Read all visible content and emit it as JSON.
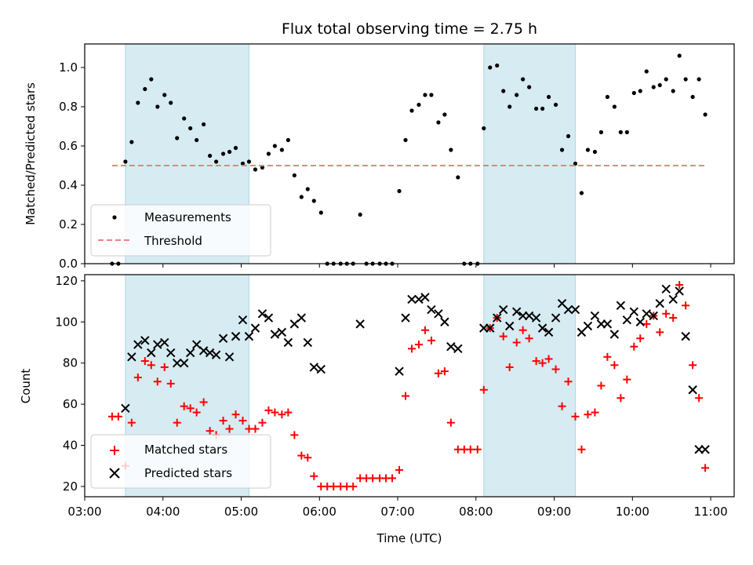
{
  "chart_data": [
    {
      "type": "scatter",
      "title": "Flux total observing time = 2.75 h",
      "ylabel": "Matched/Predicted stars",
      "xlabel": "",
      "xlim": [
        3.0,
        11.3
      ],
      "ylim": [
        0.0,
        1.12
      ],
      "x_ticks": [
        3,
        4,
        5,
        6,
        7,
        8,
        9,
        10,
        11
      ],
      "y_ticks": [
        0.0,
        0.2,
        0.4,
        0.6,
        0.8,
        1.0
      ],
      "y_tick_labels": [
        "0.0",
        "0.2",
        "0.4",
        "0.6",
        "0.8",
        "1.0"
      ],
      "shaded_spans": [
        [
          3.52,
          5.1
        ],
        [
          8.1,
          9.27
        ]
      ],
      "shade_color": "#add8e6",
      "legend_position": "lower-left",
      "series": [
        {
          "name": "Measurements",
          "color": "#000000",
          "marker": "dot",
          "x": [
            3.35,
            3.43,
            3.52,
            3.6,
            3.68,
            3.77,
            3.85,
            3.93,
            4.02,
            4.1,
            4.18,
            4.27,
            4.35,
            4.43,
            4.52,
            4.6,
            4.68,
            4.77,
            4.85,
            4.93,
            5.02,
            5.1,
            5.18,
            5.27,
            5.35,
            5.43,
            5.52,
            5.6,
            5.68,
            5.77,
            5.85,
            5.93,
            6.02,
            6.1,
            6.18,
            6.27,
            6.35,
            6.43,
            6.52,
            6.6,
            6.68,
            6.77,
            6.85,
            6.93,
            7.02,
            7.1,
            7.18,
            7.27,
            7.35,
            7.43,
            7.52,
            7.6,
            7.68,
            7.77,
            7.85,
            7.93,
            8.02,
            8.1,
            8.18,
            8.27,
            8.35,
            8.43,
            8.52,
            8.6,
            8.68,
            8.77,
            8.85,
            8.93,
            9.02,
            9.1,
            9.18,
            9.27,
            9.35,
            9.43,
            9.52,
            9.6,
            9.68,
            9.77,
            9.85,
            9.93,
            10.02,
            10.1,
            10.18,
            10.27,
            10.35,
            10.43,
            10.52,
            10.6,
            10.68,
            10.77,
            10.85,
            10.93
          ],
          "y": [
            0.0,
            0.0,
            0.52,
            0.62,
            0.82,
            0.89,
            0.94,
            0.8,
            0.86,
            0.82,
            0.64,
            0.74,
            0.69,
            0.63,
            0.71,
            0.55,
            0.52,
            0.56,
            0.57,
            0.59,
            0.51,
            0.52,
            0.48,
            0.49,
            0.56,
            0.6,
            0.58,
            0.63,
            0.45,
            0.34,
            0.38,
            0.32,
            0.26,
            0.0,
            0.0,
            0.0,
            0.0,
            0.0,
            0.25,
            0.0,
            0.0,
            0.0,
            0.0,
            0.0,
            0.37,
            0.63,
            0.78,
            0.81,
            0.86,
            0.86,
            0.72,
            0.76,
            0.58,
            0.44,
            0.0,
            0.0,
            0.0,
            0.69,
            1.0,
            1.01,
            0.88,
            0.8,
            0.86,
            0.94,
            0.9,
            0.79,
            0.79,
            0.85,
            0.81,
            0.58,
            0.65,
            0.51,
            0.36,
            0.58,
            0.57,
            0.67,
            0.85,
            0.8,
            0.67,
            0.67,
            0.87,
            0.88,
            0.98,
            0.9,
            0.91,
            0.94,
            0.88,
            1.06,
            0.94,
            0.85,
            0.94,
            0.76
          ]
        },
        {
          "name": "Threshold",
          "color": "#f08080",
          "style": "dashed",
          "x": [
            3.35,
            10.93
          ],
          "y": [
            0.5,
            0.5
          ]
        }
      ]
    },
    {
      "type": "scatter",
      "title": "",
      "ylabel": "Count",
      "xlabel": "Time (UTC)",
      "xlim": [
        3.0,
        11.3
      ],
      "ylim": [
        15,
        123
      ],
      "x_ticks": [
        3,
        4,
        5,
        6,
        7,
        8,
        9,
        10,
        11
      ],
      "x_tick_labels": [
        "03:00",
        "04:00",
        "05:00",
        "06:00",
        "07:00",
        "08:00",
        "09:00",
        "10:00",
        "11:00"
      ],
      "y_ticks": [
        20,
        40,
        60,
        80,
        100,
        120
      ],
      "y_tick_labels": [
        "20",
        "40",
        "60",
        "80",
        "100",
        "120"
      ],
      "shaded_spans": [
        [
          3.52,
          5.1
        ],
        [
          8.1,
          9.27
        ]
      ],
      "shade_color": "#add8e6",
      "legend_position": "lower-left",
      "series": [
        {
          "name": "Matched stars",
          "color": "#ff0000",
          "marker": "plus",
          "x": [
            3.35,
            3.43,
            3.52,
            3.6,
            3.68,
            3.77,
            3.85,
            3.93,
            4.02,
            4.1,
            4.18,
            4.27,
            4.35,
            4.43,
            4.52,
            4.6,
            4.68,
            4.77,
            4.85,
            4.93,
            5.02,
            5.1,
            5.18,
            5.27,
            5.35,
            5.43,
            5.52,
            5.6,
            5.68,
            5.77,
            5.85,
            5.93,
            6.02,
            6.1,
            6.18,
            6.27,
            6.35,
            6.43,
            6.52,
            6.6,
            6.68,
            6.77,
            6.85,
            6.93,
            7.02,
            7.1,
            7.18,
            7.27,
            7.35,
            7.43,
            7.52,
            7.6,
            7.68,
            7.77,
            7.85,
            7.93,
            8.02,
            8.1,
            8.18,
            8.27,
            8.35,
            8.43,
            8.52,
            8.6,
            8.68,
            8.77,
            8.85,
            8.93,
            9.02,
            9.1,
            9.18,
            9.27,
            9.35,
            9.43,
            9.52,
            9.6,
            9.68,
            9.77,
            9.85,
            9.93,
            10.02,
            10.1,
            10.18,
            10.27,
            10.35,
            10.43,
            10.52,
            10.6,
            10.68,
            10.77,
            10.85,
            10.93
          ],
          "y": [
            54,
            54,
            30,
            51,
            73,
            81,
            79,
            71,
            78,
            70,
            51,
            59,
            58,
            56,
            61,
            47,
            45,
            52,
            48,
            55,
            52,
            48,
            48,
            51,
            57,
            56,
            55,
            56,
            45,
            35,
            34,
            25,
            20,
            20,
            20,
            20,
            20,
            20,
            24,
            24,
            24,
            24,
            24,
            24,
            28,
            64,
            87,
            89,
            96,
            91,
            75,
            76,
            51,
            38,
            38,
            38,
            38,
            67,
            97,
            102,
            93,
            78,
            90,
            96,
            92,
            81,
            80,
            82,
            77,
            59,
            71,
            54,
            38,
            55,
            56,
            69,
            83,
            79,
            63,
            72,
            88,
            92,
            99,
            103,
            95,
            104,
            102,
            118,
            108,
            79,
            63,
            29
          ]
        },
        {
          "name": "Predicted stars",
          "color": "#000000",
          "marker": "x",
          "x": [
            3.52,
            3.6,
            3.68,
            3.77,
            3.85,
            3.93,
            4.02,
            4.1,
            4.18,
            4.27,
            4.35,
            4.43,
            4.52,
            4.6,
            4.68,
            4.77,
            4.85,
            4.93,
            5.02,
            5.1,
            5.18,
            5.27,
            5.35,
            5.43,
            5.52,
            5.6,
            5.68,
            5.77,
            5.85,
            5.93,
            6.02,
            6.52,
            7.02,
            7.1,
            7.18,
            7.27,
            7.35,
            7.43,
            7.52,
            7.6,
            7.68,
            7.77,
            8.1,
            8.18,
            8.27,
            8.35,
            8.43,
            8.52,
            8.6,
            8.68,
            8.77,
            8.85,
            8.93,
            9.02,
            9.1,
            9.18,
            9.27,
            9.35,
            9.43,
            9.52,
            9.6,
            9.68,
            9.77,
            9.85,
            9.93,
            10.02,
            10.1,
            10.18,
            10.27,
            10.35,
            10.43,
            10.52,
            10.6,
            10.68,
            10.77,
            10.85,
            10.93
          ],
          "y": [
            58,
            83,
            89,
            91,
            85,
            89,
            90,
            85,
            80,
            80,
            85,
            89,
            86,
            85,
            84,
            92,
            83,
            93,
            101,
            93,
            97,
            104,
            102,
            94,
            95,
            90,
            99,
            102,
            90,
            78,
            77,
            99,
            76,
            102,
            111,
            111,
            112,
            106,
            104,
            100,
            88,
            87,
            97,
            97,
            102,
            106,
            98,
            105,
            103,
            103,
            102,
            97,
            95,
            102,
            109,
            106,
            106,
            95,
            98,
            103,
            99,
            99,
            94,
            108,
            101,
            105,
            100,
            104,
            103,
            109,
            116,
            111,
            115,
            93,
            67,
            38,
            38
          ]
        }
      ]
    }
  ]
}
